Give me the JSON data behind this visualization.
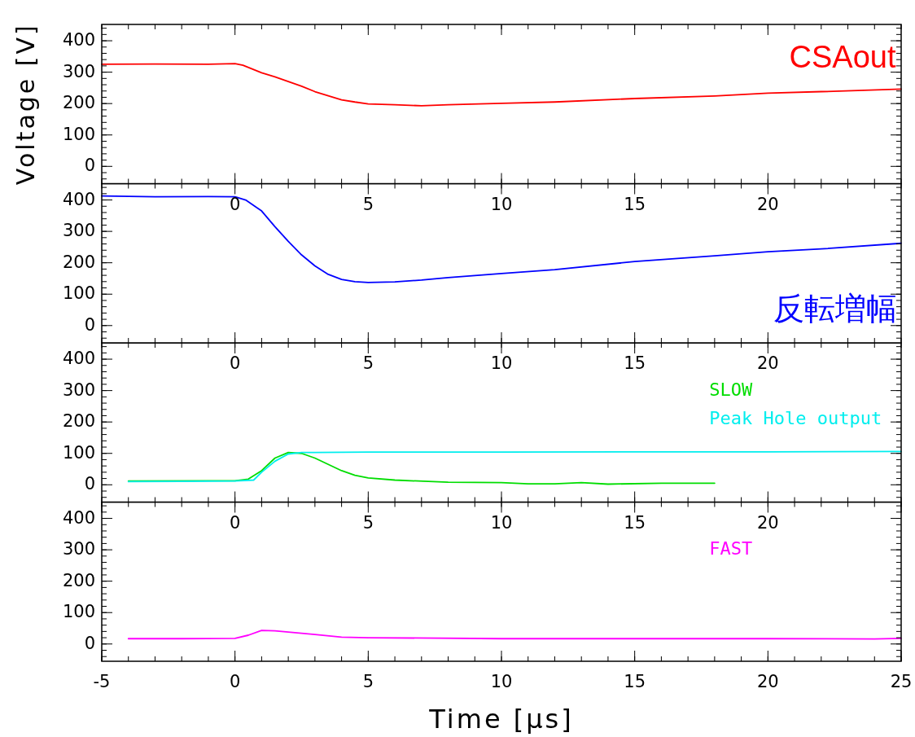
{
  "chart_data": [
    {
      "type": "line",
      "ylabel": "Voltage [V]",
      "xlim": [
        -5,
        25
      ],
      "xticks": [
        0,
        5,
        10,
        15,
        20
      ],
      "ylim": [
        -55,
        452
      ],
      "yticks": [
        0,
        100,
        200,
        300,
        400
      ],
      "grid": false,
      "marker": "none",
      "line_style": "solid",
      "series": [
        {
          "name": "CSAout",
          "color": "#ff0000",
          "x": [
            -5,
            -3,
            -1,
            0,
            0.3,
            1,
            1.5,
            2,
            2.5,
            3,
            3.5,
            4,
            4.5,
            5,
            6,
            7,
            8,
            10,
            12,
            15,
            18,
            20,
            22,
            25
          ],
          "values": [
            325,
            326,
            325,
            327,
            322,
            298,
            285,
            270,
            255,
            238,
            225,
            212,
            205,
            199,
            196,
            193,
            196,
            201,
            205,
            216,
            224,
            233,
            238,
            246
          ]
        }
      ]
    },
    {
      "type": "line",
      "xlim": [
        -5,
        25
      ],
      "xticks": [
        0,
        5,
        10,
        15,
        20
      ],
      "ylim": [
        -55,
        452
      ],
      "yticks": [
        0,
        100,
        200,
        300,
        400
      ],
      "grid": false,
      "marker": "none",
      "line_style": "solid",
      "series": [
        {
          "name": "反転増幅",
          "color": "#0000ff",
          "x": [
            -5,
            -3,
            -1,
            0,
            0.4,
            1,
            1.5,
            2,
            2.5,
            3,
            3.5,
            4,
            4.5,
            5,
            6,
            7,
            8,
            10,
            12,
            15,
            18,
            20,
            22,
            25
          ],
          "values": [
            413,
            410,
            411,
            410,
            400,
            365,
            315,
            268,
            225,
            190,
            163,
            147,
            140,
            137,
            139,
            145,
            153,
            166,
            178,
            204,
            222,
            235,
            244,
            262
          ]
        }
      ]
    },
    {
      "type": "line",
      "xlim": [
        -5,
        25
      ],
      "xticks": [
        0,
        5,
        10,
        15,
        20
      ],
      "ylim": [
        -55,
        452
      ],
      "yticks": [
        0,
        100,
        200,
        300,
        400
      ],
      "grid": false,
      "marker": "none",
      "line_style": "solid",
      "series": [
        {
          "name": "SLOW",
          "color": "#00dd00",
          "x": [
            -4,
            0,
            0.5,
            1,
            1.5,
            2,
            2.5,
            3,
            3.5,
            4,
            4.5,
            5,
            6,
            8,
            10,
            11,
            12,
            13,
            14,
            16,
            18
          ],
          "values": [
            12,
            13,
            18,
            45,
            85,
            103,
            100,
            85,
            65,
            45,
            30,
            22,
            15,
            8,
            7,
            3,
            3,
            7,
            2,
            5,
            5
          ]
        },
        {
          "name": "Peak Hole output",
          "color": "#00eeee",
          "x": [
            -4,
            -2,
            0,
            0.7,
            1,
            1.5,
            2,
            2.5,
            3,
            5,
            10,
            15,
            20,
            25
          ],
          "values": [
            10,
            11,
            12,
            15,
            40,
            75,
            98,
            103,
            103,
            104,
            104,
            105,
            105,
            106
          ]
        }
      ]
    },
    {
      "type": "line",
      "xlabel": "Time [μs]",
      "xlim": [
        -5,
        25
      ],
      "xticks": [
        -5,
        0,
        5,
        10,
        15,
        20,
        25
      ],
      "ylim": [
        -55,
        452
      ],
      "yticks": [
        0,
        100,
        200,
        300,
        400
      ],
      "grid": false,
      "marker": "none",
      "line_style": "solid",
      "series": [
        {
          "name": "FAST",
          "color": "#ff00ff",
          "x": [
            -4,
            -2,
            0,
            0.5,
            1,
            1.5,
            2,
            3,
            4,
            5,
            10,
            15,
            20,
            24,
            25
          ],
          "values": [
            17,
            17,
            18,
            28,
            43,
            42,
            38,
            30,
            22,
            20,
            17,
            17,
            17,
            16,
            18
          ]
        }
      ]
    }
  ]
}
